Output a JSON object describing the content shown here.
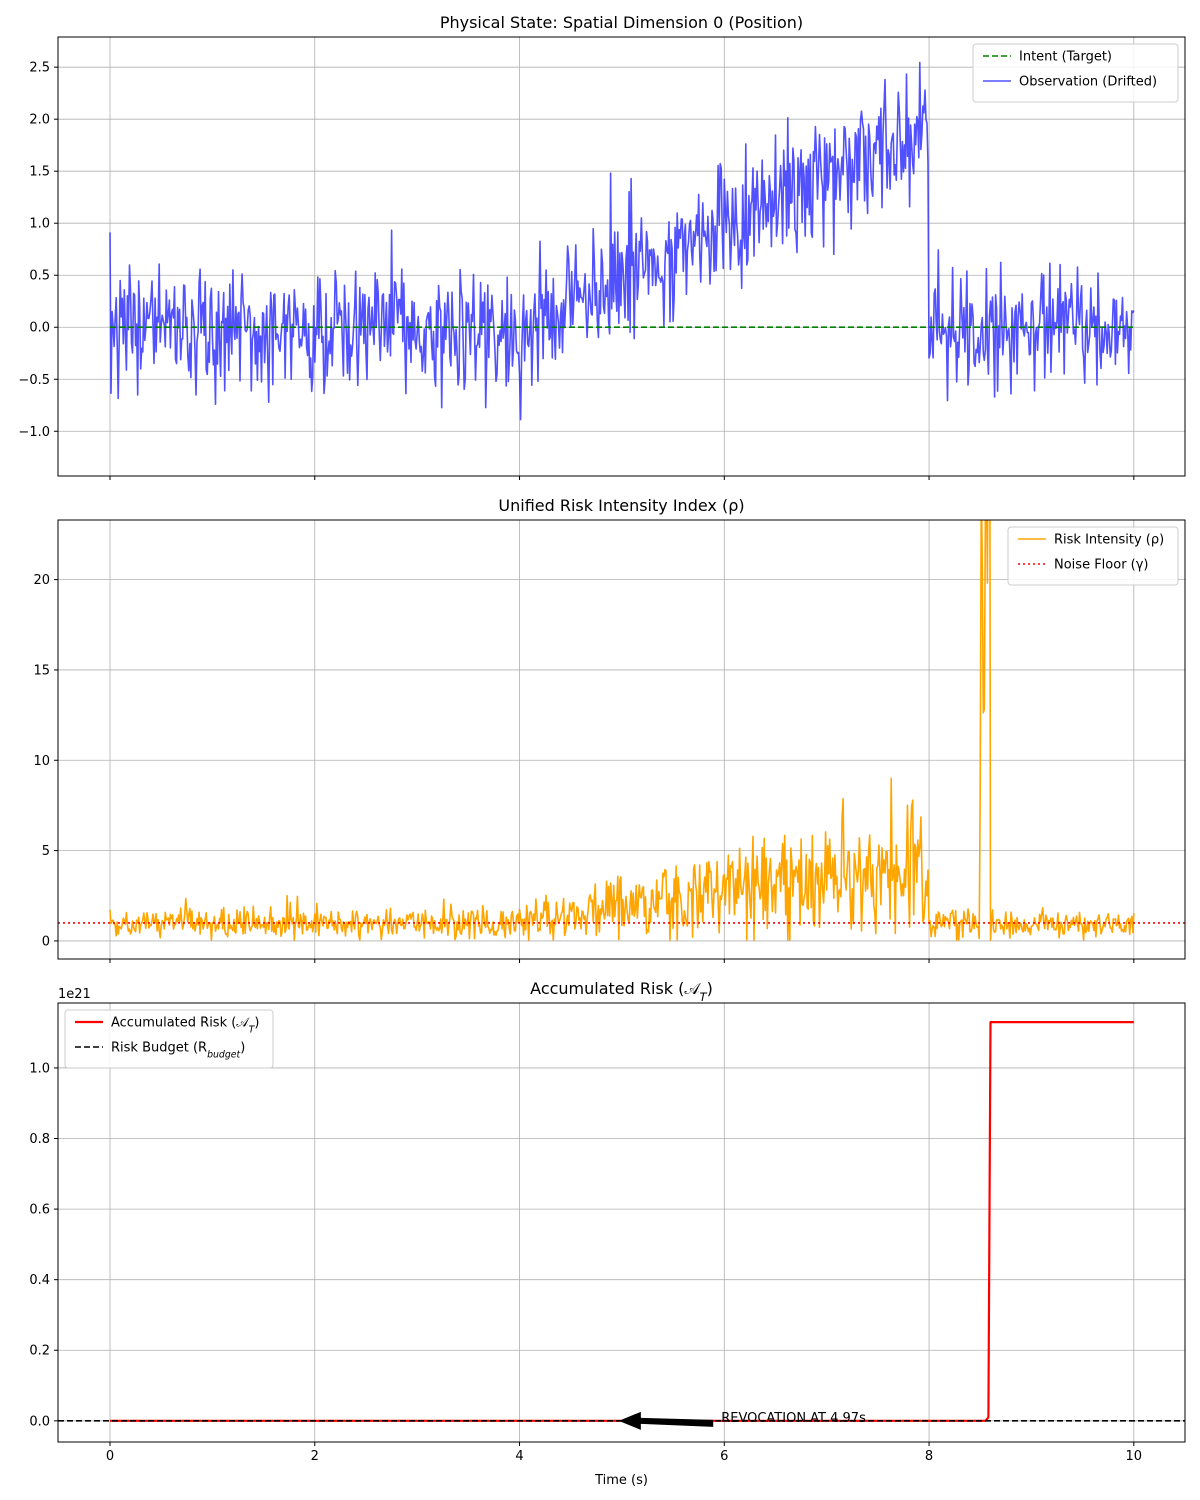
{
  "chart_data": [
    {
      "type": "line",
      "title": "Physical State: Spatial Dimension 0 (Position)",
      "xlabel": "",
      "ylabel": "",
      "xlim": [
        -0.508,
        10.5
      ],
      "ylim": [
        -1.43,
        2.79
      ],
      "xticks": [
        0,
        2,
        4,
        6,
        8,
        10
      ],
      "yticks": [
        -1.0,
        -0.5,
        0.0,
        0.5,
        1.0,
        1.5,
        2.0,
        2.5
      ],
      "ytick_labels": [
        "−1.0",
        "−0.5",
        "0.0",
        "0.5",
        "1.0",
        "1.5",
        "2.0",
        "2.5"
      ],
      "show_xtick_labels": false,
      "grid": true,
      "legend_placement": "top-right",
      "series": [
        {
          "name": "Intent (Target)",
          "color": "#008000",
          "style": "dashed",
          "points": [
            [
              0,
              0
            ],
            [
              10,
              0
            ]
          ]
        },
        {
          "name": "Observation (Drifted)",
          "color": "#3333ff",
          "style": "solid",
          "generator": {
            "n": 1000,
            "seed": 7,
            "noise_std": 0.3,
            "mean_segments": [
              [
                0,
                4,
                0,
                0
              ],
              [
                4,
                8,
                0,
                1.9
              ],
              [
                8,
                10,
                0,
                0
              ]
            ]
          }
        }
      ]
    },
    {
      "type": "line",
      "title": "Unified Risk Intensity Index (ρ)",
      "xlabel": "",
      "ylabel": "",
      "xlim": [
        -0.508,
        10.5
      ],
      "ylim": [
        -1.0,
        23.3
      ],
      "xticks": [
        0,
        2,
        4,
        6,
        8,
        10
      ],
      "yticks": [
        0,
        5,
        10,
        15,
        20
      ],
      "ytick_labels": [
        "0",
        "5",
        "10",
        "15",
        "20"
      ],
      "show_xtick_labels": false,
      "grid": true,
      "legend_placement": "top-right",
      "series": [
        {
          "name": "Risk Intensity (ρ)",
          "color": "#ffa500",
          "style": "solid",
          "generator": {
            "n": 1000,
            "seed": 11,
            "noise_rel": 0.45,
            "mean_segments": [
              [
                0,
                4,
                0.95,
                1.0
              ],
              [
                4,
                8,
                1.0,
                4.5
              ],
              [
                8,
                8.5,
                1.0,
                1.0
              ],
              [
                8.5,
                8.6,
                17,
                19
              ],
              [
                8.6,
                10,
                0.9,
                0.9
              ]
            ]
          }
        },
        {
          "name": "Noise Floor (γ)",
          "color": "#ff0000",
          "style": "dotted",
          "points": [
            [
              -0.508,
              1
            ],
            [
              10.5,
              1
            ]
          ]
        }
      ]
    },
    {
      "type": "line",
      "title": "Accumulated Risk (𝒜_{T})",
      "xlabel": "Time (s)",
      "ylabel": "",
      "offset_label": "1e21",
      "xlim": [
        -0.508,
        10.5
      ],
      "ylim": [
        -0.06,
        1.184
      ],
      "xticks": [
        0,
        2,
        4,
        6,
        8,
        10
      ],
      "xtick_labels": [
        "0",
        "2",
        "4",
        "6",
        "8",
        "10"
      ],
      "yticks": [
        0.0,
        0.2,
        0.4,
        0.6,
        0.8,
        1.0
      ],
      "ytick_labels": [
        "0.0",
        "0.2",
        "0.4",
        "0.6",
        "0.8",
        "1.0"
      ],
      "show_xtick_labels": true,
      "grid": true,
      "legend_placement": "top-left",
      "series": [
        {
          "name": "Accumulated Risk (𝒜_{T})",
          "color": "#ff0000",
          "style": "thick",
          "points": [
            [
              0,
              0
            ],
            [
              8.55,
              0
            ],
            [
              8.58,
              0.01
            ],
            [
              8.6,
              1.13
            ],
            [
              10,
              1.13
            ]
          ]
        },
        {
          "name": "Risk Budget (R_{budget})",
          "color": "#000000",
          "style": "dashed",
          "points": [
            [
              -0.508,
              0
            ],
            [
              10.5,
              0
            ]
          ]
        }
      ],
      "annotation": {
        "text": "REVOCATION AT 4.97s",
        "arrow_to": [
          4.97,
          0.0
        ],
        "text_at": [
          5.97,
          0.0
        ]
      }
    }
  ]
}
